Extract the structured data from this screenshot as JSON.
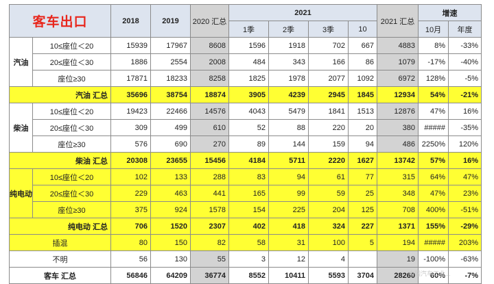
{
  "title": "客车出口",
  "headers": {
    "y2018": "2018",
    "y2019": "2019",
    "y2020": "2020 汇总",
    "y2021": "2021",
    "q1": "1季",
    "q2": "2季",
    "q3": "3季",
    "m10": "10",
    "total2021": "2021 汇总",
    "growth": "增速",
    "oct": "10月",
    "annual": "年度"
  },
  "groups": [
    {
      "fuel": "汽油",
      "rows": [
        {
          "seat": "10≤座位＜20",
          "v": [
            "15939",
            "17967",
            "8608",
            "1596",
            "1918",
            "702",
            "667",
            "4883",
            "8%",
            "-33%"
          ]
        },
        {
          "seat": "20≤座位＜30",
          "v": [
            "1886",
            "2554",
            "2008",
            "484",
            "343",
            "166",
            "86",
            "1079",
            "-17%",
            "-40%"
          ]
        },
        {
          "seat": "座位≥30",
          "v": [
            "17871",
            "18233",
            "8258",
            "1825",
            "1978",
            "2077",
            "1092",
            "6972",
            "128%",
            "-5%"
          ]
        }
      ],
      "subtotal": {
        "label": "汽油 汇总",
        "v": [
          "35696",
          "38754",
          "18874",
          "3905",
          "4239",
          "2945",
          "1845",
          "12934",
          "54%",
          "-21%"
        ]
      }
    },
    {
      "fuel": "柴油",
      "rows": [
        {
          "seat": "10≤座位＜20",
          "v": [
            "19423",
            "22466",
            "14576",
            "4043",
            "5479",
            "1841",
            "1513",
            "12876",
            "47%",
            "16%"
          ]
        },
        {
          "seat": "20≤座位＜30",
          "v": [
            "309",
            "499",
            "610",
            "52",
            "88",
            "220",
            "20",
            "380",
            "#####",
            "-35%"
          ]
        },
        {
          "seat": "座位≥30",
          "v": [
            "576",
            "690",
            "270",
            "89",
            "144",
            "159",
            "94",
            "486",
            "2250%",
            "120%"
          ]
        }
      ],
      "subtotal": {
        "label": "柴油 汇总",
        "v": [
          "20308",
          "23655",
          "15456",
          "4184",
          "5711",
          "2220",
          "1627",
          "13742",
          "57%",
          "16%"
        ]
      }
    },
    {
      "fuel": "纯电动",
      "rows": [
        {
          "seat": "10≤座位＜20",
          "v": [
            "102",
            "133",
            "288",
            "83",
            "94",
            "61",
            "77",
            "315",
            "64%",
            "47%"
          ]
        },
        {
          "seat": "20≤座位＜30",
          "v": [
            "229",
            "463",
            "441",
            "165",
            "99",
            "59",
            "25",
            "348",
            "47%",
            "23%"
          ]
        },
        {
          "seat": "座位≥30",
          "v": [
            "375",
            "924",
            "1578",
            "154",
            "225",
            "204",
            "125",
            "708",
            "400%",
            "-51%"
          ]
        }
      ],
      "subtotal": {
        "label": "纯电动 汇总",
        "v": [
          "706",
          "1520",
          "2307",
          "402",
          "418",
          "324",
          "227",
          "1371",
          "155%",
          "-29%"
        ]
      }
    }
  ],
  "extra_rows": [
    {
      "label": "插混",
      "v": [
        "80",
        "150",
        "82",
        "58",
        "31",
        "100",
        "5",
        "194",
        "#####",
        "203%"
      ]
    },
    {
      "label": "不明",
      "v": [
        "56",
        "130",
        "55",
        "3",
        "12",
        "4",
        "",
        "19",
        "-100%",
        "-63%"
      ]
    },
    {
      "label": "客车 汇总",
      "v": [
        "56846",
        "64209",
        "36774",
        "8552",
        "10411",
        "5593",
        "3704",
        "28260",
        "60%",
        "-7%"
      ]
    }
  ],
  "watermark": "中国汽车工业...",
  "colors": {
    "title": "#e8261c",
    "header_bg": "#dde4ef",
    "highlight": "#ffff33",
    "gray": "#d3d3d3"
  }
}
